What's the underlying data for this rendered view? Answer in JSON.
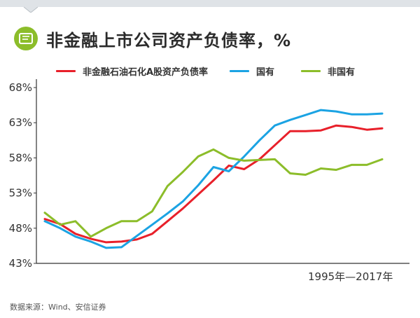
{
  "header": {
    "title": "非金融上市公司资产负债率，%",
    "icon_name": "chart-book-icon",
    "accent_color": "#8cbd2a"
  },
  "chart_data": {
    "type": "line",
    "title": "非金融上市公司资产负债率，%",
    "x_range_label": "1995年—2017年",
    "x": [
      1995,
      1996,
      1997,
      1998,
      1999,
      2000,
      2001,
      2002,
      2003,
      2004,
      2005,
      2006,
      2007,
      2008,
      2009,
      2010,
      2011,
      2012,
      2013,
      2014,
      2015,
      2016,
      2017
    ],
    "y_ticks": [
      "68%",
      "63%",
      "58%",
      "53%",
      "48%",
      "43%"
    ],
    "y_tick_values": [
      68,
      63,
      58,
      53,
      48,
      43
    ],
    "ylim": [
      43,
      68
    ],
    "grid": false,
    "legend_position": "top",
    "series": [
      {
        "name": "非金融石油石化A股资产负债率",
        "color": "#e8202a",
        "values": [
          49.3,
          48.6,
          47.2,
          46.5,
          46.0,
          46.1,
          46.4,
          47.2,
          49.0,
          50.8,
          52.8,
          54.8,
          56.9,
          56.4,
          57.8,
          59.8,
          61.8,
          61.8,
          61.9,
          62.6,
          62.4,
          62.0,
          62.2
        ]
      },
      {
        "name": "国有",
        "color": "#1ba3e3",
        "values": [
          49.0,
          48.0,
          46.8,
          46.1,
          45.2,
          45.3,
          46.9,
          48.5,
          50.1,
          51.8,
          54.1,
          56.7,
          56.1,
          58.2,
          60.5,
          62.6,
          63.4,
          64.1,
          64.8,
          64.6,
          64.2,
          64.2,
          64.3
        ]
      },
      {
        "name": "非国有",
        "color": "#8cbd2a",
        "values": [
          50.2,
          48.5,
          49.0,
          46.8,
          48.0,
          49.0,
          49.0,
          50.4,
          54.0,
          56.0,
          58.2,
          59.2,
          58.0,
          57.6,
          57.7,
          57.8,
          55.8,
          55.6,
          56.5,
          56.3,
          57.0,
          57.0,
          57.8
        ]
      }
    ]
  },
  "footer": {
    "source": "数据来源：Wind、安信证券"
  }
}
